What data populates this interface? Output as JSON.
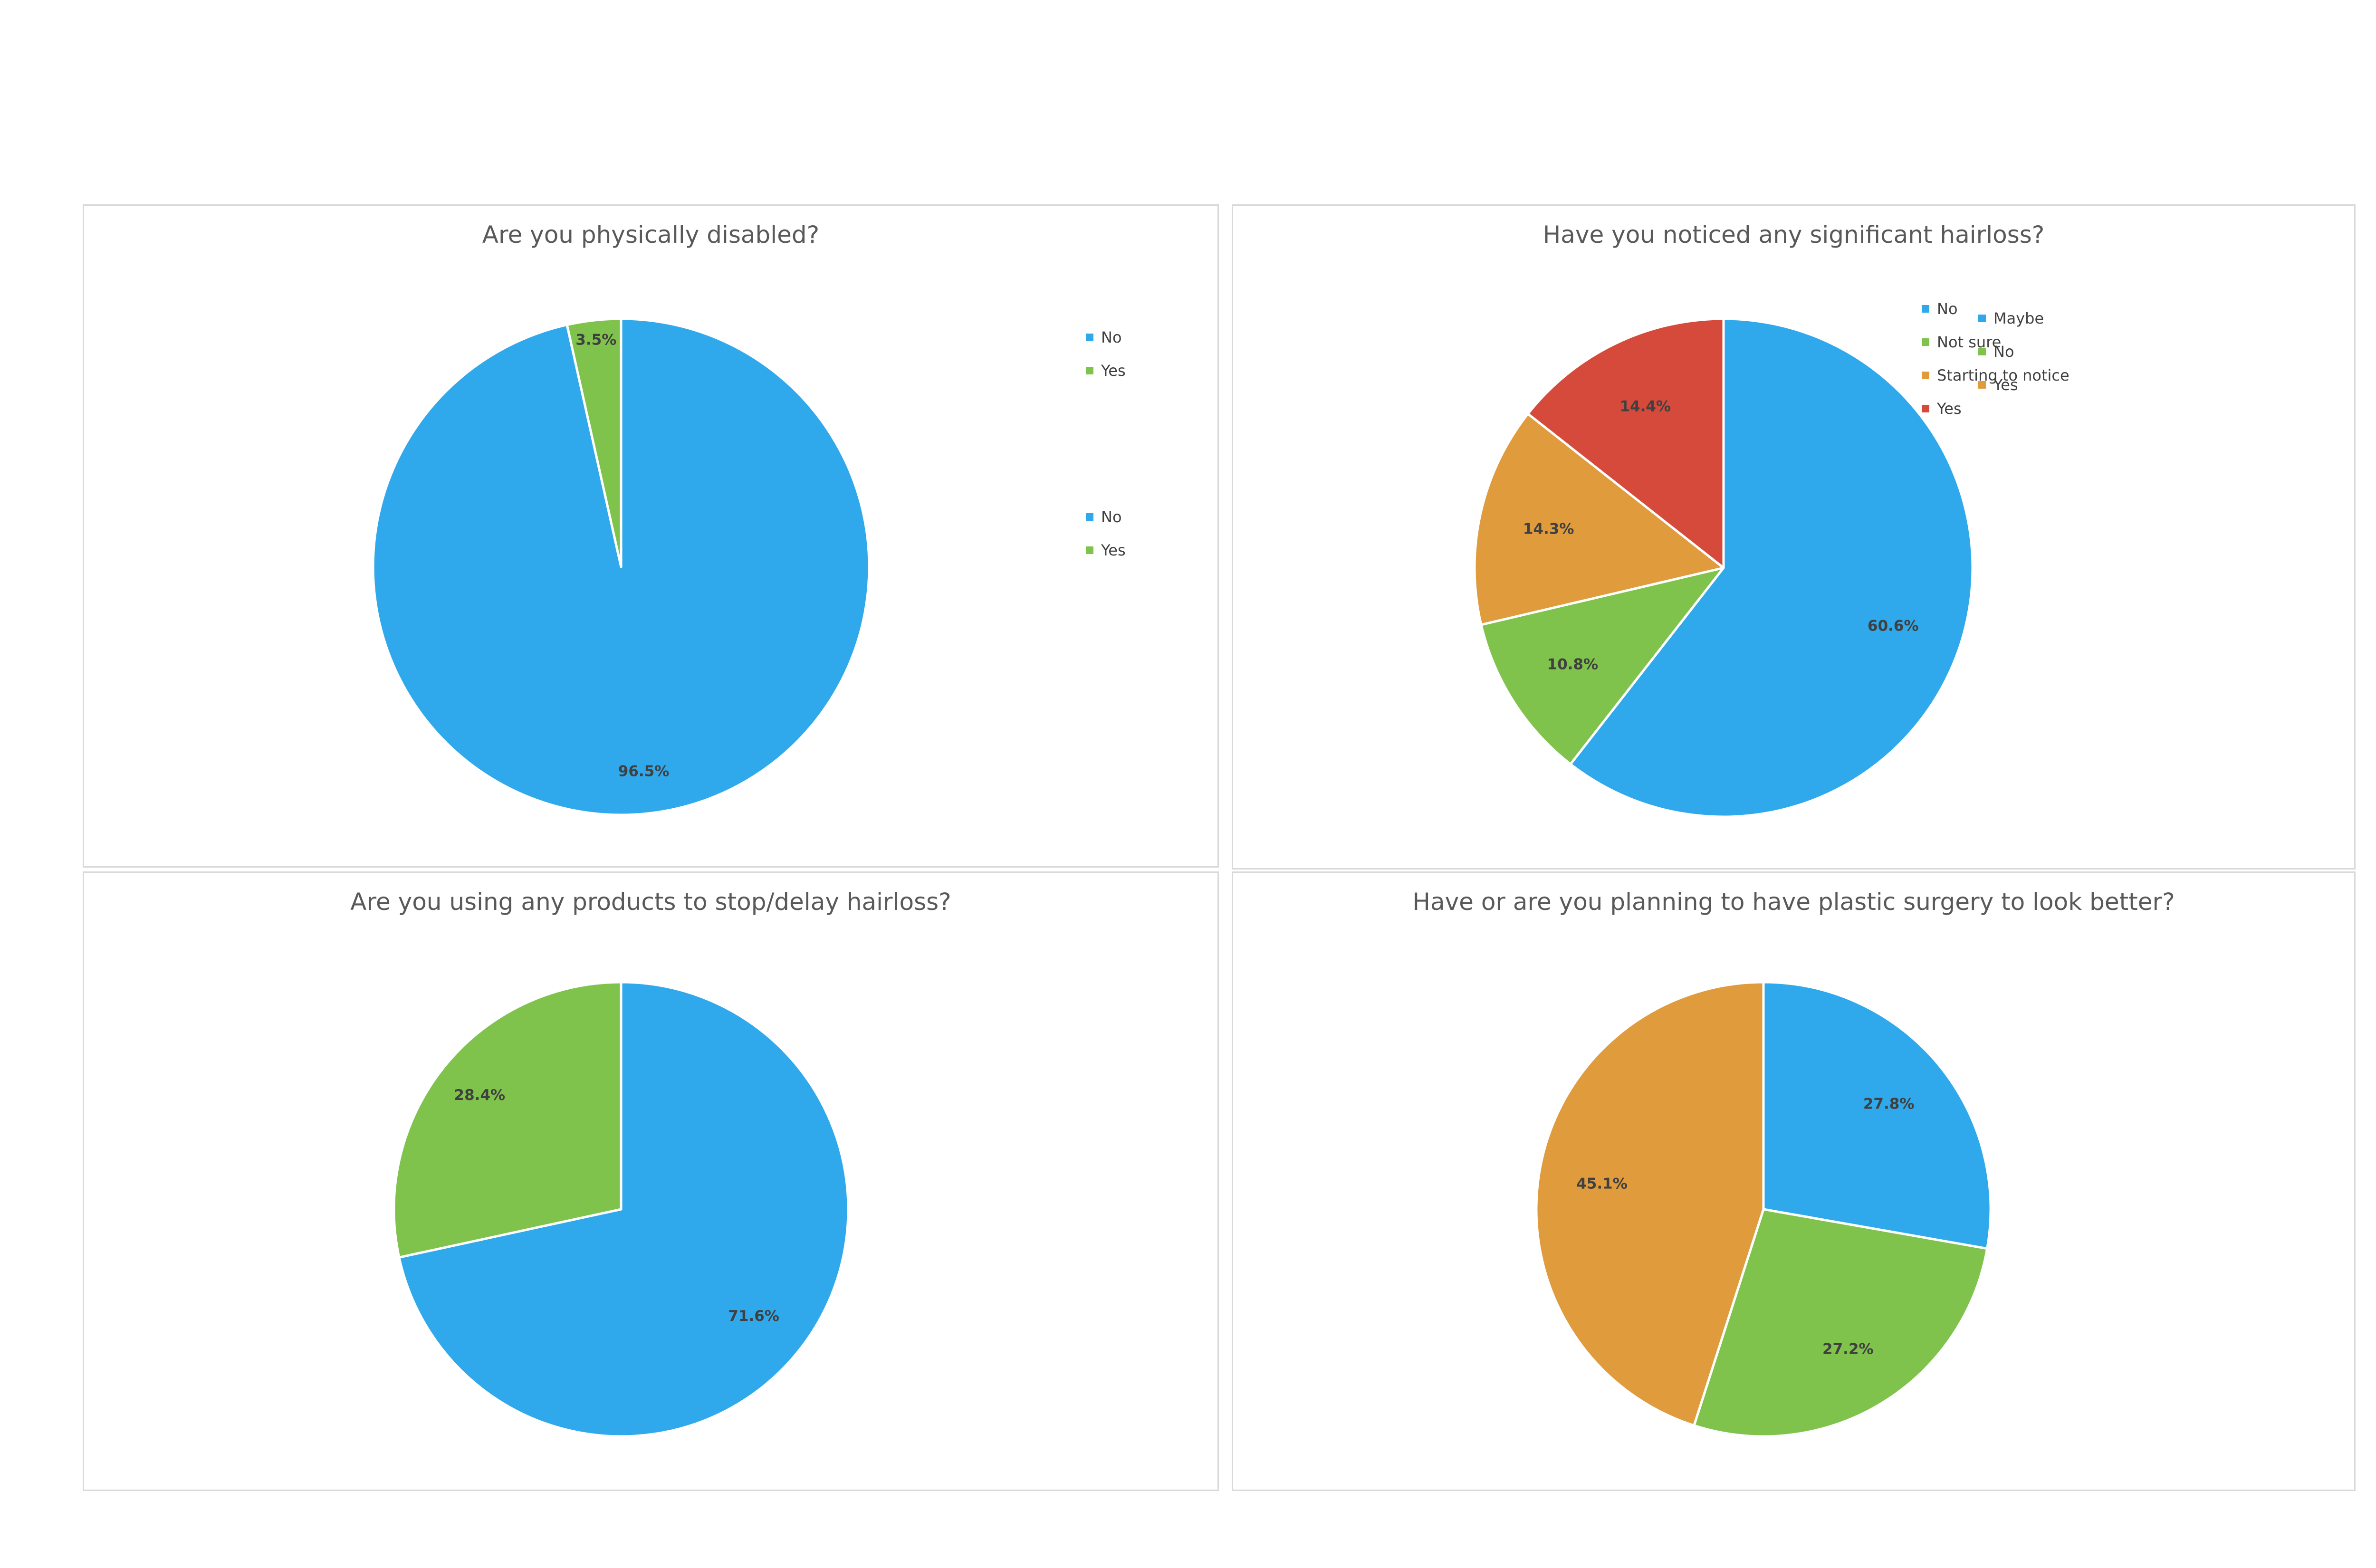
{
  "chart_data": [
    {
      "type": "pie",
      "title": "Are you physically disabled?",
      "slices": [
        {
          "label": "No",
          "value": 96.5,
          "display": "96.5%",
          "color": "#2fa9eb"
        },
        {
          "label": "Yes",
          "value": 3.5,
          "display": "3.5%",
          "color": "#7fc34d"
        }
      ],
      "legend_position": "right"
    },
    {
      "type": "pie",
      "title": "Have you noticed any significant hairloss?",
      "slices": [
        {
          "label": "No",
          "value": 60.6,
          "display": "60.6%",
          "color": "#2fa9eb"
        },
        {
          "label": "Not sure",
          "value": 10.8,
          "display": "10.8%",
          "color": "#7fc34d"
        },
        {
          "label": "Starting to notice",
          "value": 14.3,
          "display": "14.3%",
          "color": "#e09b3d"
        },
        {
          "label": "Yes",
          "value": 14.4,
          "display": "14.4%",
          "color": "#d54a3a"
        }
      ],
      "legend_position": "right"
    },
    {
      "type": "pie",
      "title": "Are you using any products to stop/delay hairloss?",
      "slices": [
        {
          "label": "No",
          "value": 71.6,
          "display": "71.6%",
          "color": "#2fa9eb"
        },
        {
          "label": "Yes",
          "value": 28.4,
          "display": "28.4%",
          "color": "#7fc34d"
        }
      ],
      "legend_position": "right"
    },
    {
      "type": "pie",
      "title": "Have or are you planning to have plastic surgery to look better?",
      "slices": [
        {
          "label": "Maybe",
          "value": 27.8,
          "display": "27.8%",
          "color": "#2fa9eb"
        },
        {
          "label": "No",
          "value": 27.2,
          "display": "27.2%",
          "color": "#7fc34d"
        },
        {
          "label": "Yes",
          "value": 45.1,
          "display": "45.1%",
          "color": "#e09b3d"
        }
      ],
      "legend_position": "right"
    }
  ]
}
